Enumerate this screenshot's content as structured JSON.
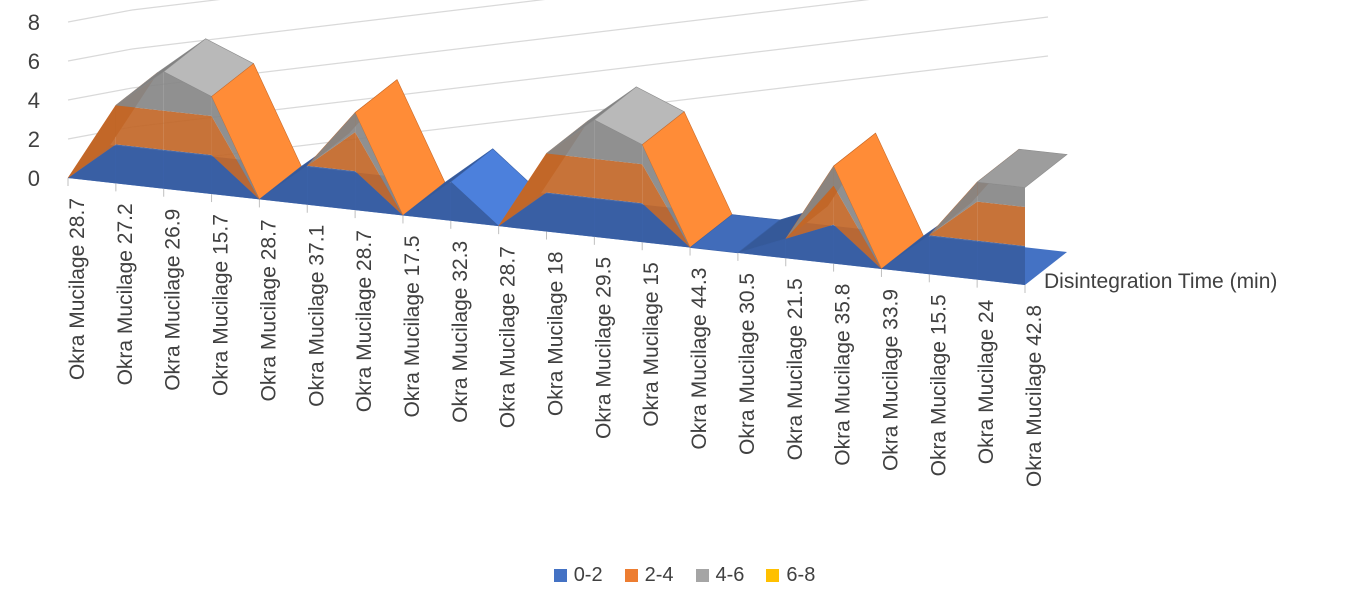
{
  "chart_data": {
    "type": "surface",
    "categories": [
      "Okra Mucilage 28.7",
      "Okra Mucilage 27.2",
      "Okra Mucilage 26.9",
      "Okra Mucilage 15.7",
      "Okra Mucilage 28.7",
      "Okra Mucilage 37.1",
      "Okra Mucilage 28.7",
      "Okra Mucilage 17.5",
      "Okra Mucilage 32.3",
      "Okra Mucilage 28.7",
      "Okra Mucilage 18",
      "Okra Mucilage 29.5",
      "Okra Mucilage 15",
      "Okra Mucilage 44.3",
      "Okra Mucilage 30.5",
      "Okra Mucilage 21.5",
      "Okra Mucilage 35.8",
      "Okra Mucilage 33.9",
      "Okra Mucilage 15.5",
      "Okra Mucilage 24",
      "Okra Mucilage 42.8"
    ],
    "values": [
      0,
      4,
      6,
      5,
      0,
      2,
      5,
      0,
      2,
      0,
      4,
      6,
      5,
      0,
      0,
      1,
      5,
      0,
      2,
      5,
      5
    ],
    "series_label": "Disintegration Time (min)",
    "ylim": [
      0,
      8
    ],
    "yticks": [
      "0",
      "2",
      "4",
      "6",
      "8"
    ],
    "legend": [
      {
        "label": "0-2",
        "color": "#4472C4"
      },
      {
        "label": "2-4",
        "color": "#ED7D31"
      },
      {
        "label": "4-6",
        "color": "#A5A5A5"
      },
      {
        "label": "6-8",
        "color": "#FFC000"
      }
    ]
  }
}
